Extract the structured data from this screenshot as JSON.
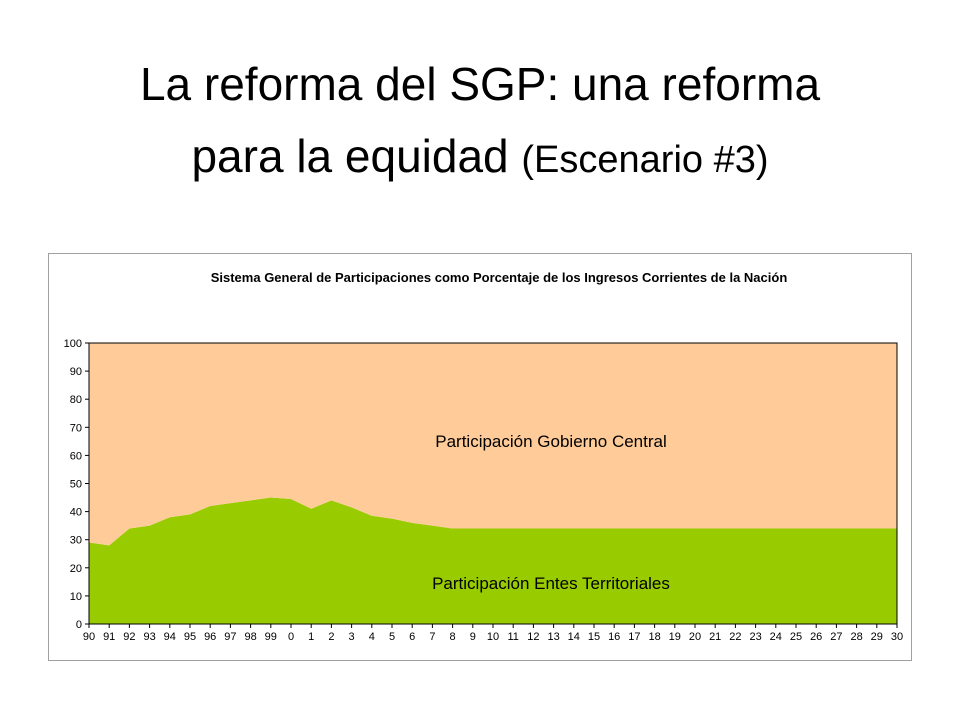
{
  "slide": {
    "title_line1": "La reforma del SGP: una reforma",
    "title_line2": "para la equidad",
    "title_line2_paren": "(Escenario #3)"
  },
  "chart_data": {
    "type": "area",
    "stacked": true,
    "title": "Sistema General de Participaciones como Porcentaje de los Ingresos Corrientes de la Nación",
    "xlabel": "",
    "ylabel": "",
    "ylim": [
      0,
      100
    ],
    "yticks": [
      0,
      10,
      20,
      30,
      40,
      50,
      60,
      70,
      80,
      90,
      100
    ],
    "categories": [
      "90",
      "91",
      "92",
      "93",
      "94",
      "95",
      "96",
      "97",
      "98",
      "99",
      "0",
      "1",
      "2",
      "3",
      "4",
      "5",
      "6",
      "7",
      "8",
      "9",
      "10",
      "11",
      "12",
      "13",
      "14",
      "15",
      "16",
      "17",
      "18",
      "19",
      "20",
      "21",
      "22",
      "23",
      "24",
      "25",
      "26",
      "27",
      "28",
      "29",
      "30"
    ],
    "grid": false,
    "legend": "none",
    "series": [
      {
        "name": "Participación Entes Territoriales",
        "color": "#99cc00",
        "values": [
          29,
          28,
          34,
          35,
          38,
          39,
          42,
          43,
          44,
          45,
          44.5,
          41,
          44,
          41.5,
          38.5,
          37.5,
          36,
          35,
          34,
          34,
          34,
          34,
          34,
          34,
          34,
          34,
          34,
          34,
          34,
          34,
          34,
          34,
          34,
          34,
          34,
          34,
          34,
          34,
          34,
          34,
          34
        ]
      },
      {
        "name": "Participación Gobierno Central",
        "color": "#ffcc99",
        "values": [
          71,
          72,
          66,
          65,
          62,
          61,
          58,
          57,
          56,
          55,
          55.5,
          59,
          56,
          58.5,
          61.5,
          62.5,
          64,
          65,
          66,
          66,
          66,
          66,
          66,
          66,
          66,
          66,
          66,
          66,
          66,
          66,
          66,
          66,
          66,
          66,
          66,
          66,
          66,
          66,
          66,
          66,
          66
        ]
      }
    ]
  }
}
